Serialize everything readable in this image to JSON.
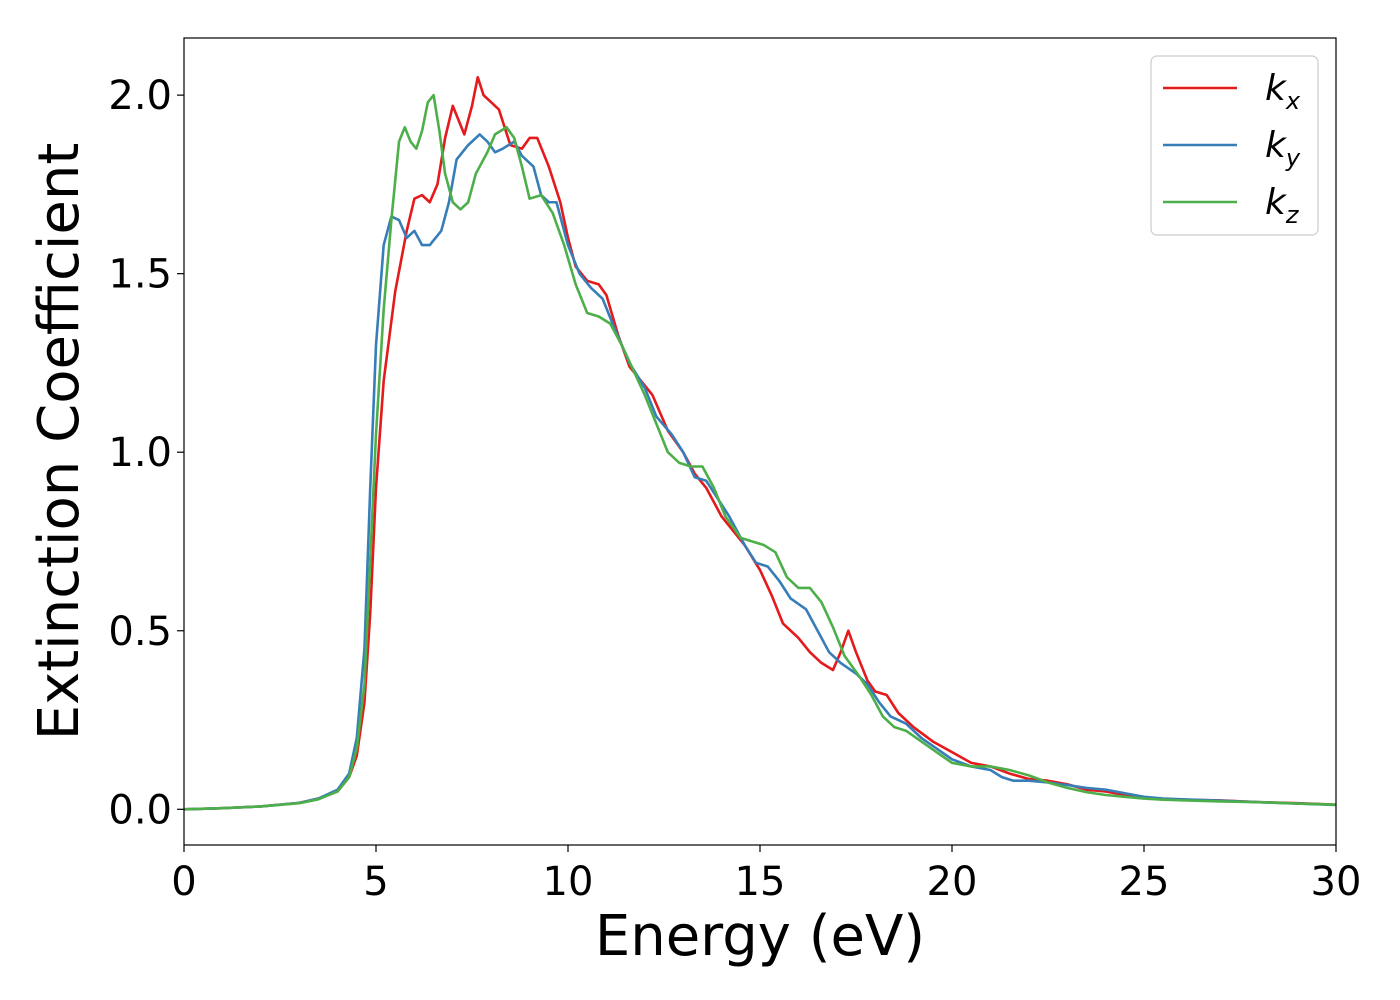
{
  "chart_data": {
    "type": "line",
    "title": "",
    "xlabel": "Energy (eV)",
    "ylabel": "Extinction Coefficient",
    "xlim": [
      0,
      30
    ],
    "ylim": [
      -0.1,
      2.16
    ],
    "xticks": [
      0,
      5,
      10,
      15,
      20,
      25,
      30
    ],
    "xtick_labels": [
      "0",
      "5",
      "10",
      "15",
      "20",
      "25",
      "30"
    ],
    "yticks": [
      0.0,
      0.5,
      1.0,
      1.5,
      2.0
    ],
    "ytick_labels": [
      "0.0",
      "0.5",
      "1.0",
      "1.5",
      "2.0"
    ],
    "grid": false,
    "legend_position": "top-right",
    "series": [
      {
        "name": "k_x",
        "label_main": "k",
        "label_sub": "x",
        "color": "#e41a1c",
        "points": [
          [
            0,
            0.0
          ],
          [
            1,
            0.003
          ],
          [
            2,
            0.008
          ],
          [
            3,
            0.018
          ],
          [
            3.5,
            0.03
          ],
          [
            4,
            0.05
          ],
          [
            4.3,
            0.09
          ],
          [
            4.5,
            0.15
          ],
          [
            4.7,
            0.3
          ],
          [
            4.85,
            0.55
          ],
          [
            5.0,
            0.9
          ],
          [
            5.2,
            1.2
          ],
          [
            5.5,
            1.45
          ],
          [
            5.8,
            1.62
          ],
          [
            6.0,
            1.71
          ],
          [
            6.2,
            1.72
          ],
          [
            6.4,
            1.7
          ],
          [
            6.6,
            1.75
          ],
          [
            6.8,
            1.88
          ],
          [
            7.0,
            1.97
          ],
          [
            7.15,
            1.93
          ],
          [
            7.3,
            1.89
          ],
          [
            7.5,
            1.97
          ],
          [
            7.65,
            2.05
          ],
          [
            7.8,
            2.0
          ],
          [
            8.0,
            1.98
          ],
          [
            8.2,
            1.96
          ],
          [
            8.5,
            1.86
          ],
          [
            8.8,
            1.85
          ],
          [
            9.0,
            1.88
          ],
          [
            9.2,
            1.88
          ],
          [
            9.5,
            1.8
          ],
          [
            9.8,
            1.7
          ],
          [
            10.0,
            1.6
          ],
          [
            10.2,
            1.52
          ],
          [
            10.5,
            1.48
          ],
          [
            10.8,
            1.47
          ],
          [
            11.0,
            1.44
          ],
          [
            11.3,
            1.33
          ],
          [
            11.6,
            1.24
          ],
          [
            11.9,
            1.2
          ],
          [
            12.2,
            1.16
          ],
          [
            12.6,
            1.06
          ],
          [
            13.0,
            1.0
          ],
          [
            13.3,
            0.94
          ],
          [
            13.6,
            0.9
          ],
          [
            14.0,
            0.82
          ],
          [
            14.3,
            0.78
          ],
          [
            14.6,
            0.74
          ],
          [
            15.0,
            0.67
          ],
          [
            15.3,
            0.6
          ],
          [
            15.6,
            0.52
          ],
          [
            16.0,
            0.48
          ],
          [
            16.3,
            0.44
          ],
          [
            16.6,
            0.41
          ],
          [
            16.9,
            0.39
          ],
          [
            17.1,
            0.44
          ],
          [
            17.3,
            0.5
          ],
          [
            17.5,
            0.44
          ],
          [
            17.8,
            0.36
          ],
          [
            18.0,
            0.33
          ],
          [
            18.3,
            0.32
          ],
          [
            18.6,
            0.27
          ],
          [
            19.0,
            0.23
          ],
          [
            19.5,
            0.19
          ],
          [
            20.0,
            0.16
          ],
          [
            20.5,
            0.13
          ],
          [
            21.0,
            0.12
          ],
          [
            21.5,
            0.1
          ],
          [
            22.0,
            0.085
          ],
          [
            22.5,
            0.08
          ],
          [
            23.0,
            0.07
          ],
          [
            23.5,
            0.055
          ],
          [
            24.0,
            0.05
          ],
          [
            24.5,
            0.04
          ],
          [
            25.0,
            0.032
          ],
          [
            25.5,
            0.028
          ],
          [
            26.0,
            0.027
          ],
          [
            27.0,
            0.025
          ],
          [
            28.0,
            0.02
          ],
          [
            29.0,
            0.017
          ],
          [
            30.0,
            0.013
          ]
        ]
      },
      {
        "name": "k_y",
        "label_main": "k",
        "label_sub": "y",
        "color": "#377eb8",
        "points": [
          [
            0,
            0.0
          ],
          [
            1,
            0.003
          ],
          [
            2,
            0.008
          ],
          [
            3,
            0.018
          ],
          [
            3.5,
            0.03
          ],
          [
            4,
            0.055
          ],
          [
            4.3,
            0.1
          ],
          [
            4.5,
            0.2
          ],
          [
            4.7,
            0.45
          ],
          [
            4.85,
            0.9
          ],
          [
            5.0,
            1.3
          ],
          [
            5.2,
            1.58
          ],
          [
            5.4,
            1.66
          ],
          [
            5.6,
            1.65
          ],
          [
            5.8,
            1.6
          ],
          [
            6.0,
            1.62
          ],
          [
            6.2,
            1.58
          ],
          [
            6.4,
            1.58
          ],
          [
            6.7,
            1.62
          ],
          [
            6.9,
            1.7
          ],
          [
            7.1,
            1.82
          ],
          [
            7.4,
            1.86
          ],
          [
            7.7,
            1.89
          ],
          [
            7.9,
            1.87
          ],
          [
            8.1,
            1.84
          ],
          [
            8.3,
            1.85
          ],
          [
            8.6,
            1.87
          ],
          [
            8.8,
            1.83
          ],
          [
            9.1,
            1.8
          ],
          [
            9.3,
            1.72
          ],
          [
            9.5,
            1.7
          ],
          [
            9.7,
            1.7
          ],
          [
            10.0,
            1.58
          ],
          [
            10.3,
            1.5
          ],
          [
            10.6,
            1.46
          ],
          [
            10.9,
            1.43
          ],
          [
            11.2,
            1.35
          ],
          [
            11.6,
            1.25
          ],
          [
            12.0,
            1.18
          ],
          [
            12.3,
            1.1
          ],
          [
            12.7,
            1.05
          ],
          [
            13.0,
            1.0
          ],
          [
            13.3,
            0.93
          ],
          [
            13.6,
            0.92
          ],
          [
            13.9,
            0.87
          ],
          [
            14.2,
            0.82
          ],
          [
            14.6,
            0.74
          ],
          [
            14.9,
            0.69
          ],
          [
            15.2,
            0.68
          ],
          [
            15.5,
            0.64
          ],
          [
            15.8,
            0.59
          ],
          [
            16.2,
            0.56
          ],
          [
            16.5,
            0.5
          ],
          [
            16.8,
            0.44
          ],
          [
            17.1,
            0.41
          ],
          [
            17.5,
            0.38
          ],
          [
            17.8,
            0.35
          ],
          [
            18.1,
            0.3
          ],
          [
            18.4,
            0.26
          ],
          [
            18.8,
            0.24
          ],
          [
            19.2,
            0.2
          ],
          [
            19.6,
            0.17
          ],
          [
            20.0,
            0.14
          ],
          [
            20.5,
            0.12
          ],
          [
            21.0,
            0.11
          ],
          [
            21.3,
            0.09
          ],
          [
            21.6,
            0.08
          ],
          [
            22.0,
            0.08
          ],
          [
            22.5,
            0.075
          ],
          [
            23.0,
            0.068
          ],
          [
            23.5,
            0.06
          ],
          [
            24.0,
            0.055
          ],
          [
            24.5,
            0.045
          ],
          [
            25.0,
            0.035
          ],
          [
            25.5,
            0.03
          ],
          [
            26.0,
            0.028
          ],
          [
            27.0,
            0.024
          ],
          [
            28.0,
            0.02
          ],
          [
            29.0,
            0.016
          ],
          [
            30.0,
            0.012
          ]
        ]
      },
      {
        "name": "k_z",
        "label_main": "k",
        "label_sub": "z",
        "color": "#4daf4a",
        "points": [
          [
            0,
            0.0
          ],
          [
            1,
            0.003
          ],
          [
            2,
            0.008
          ],
          [
            3,
            0.017
          ],
          [
            3.5,
            0.028
          ],
          [
            4,
            0.05
          ],
          [
            4.3,
            0.09
          ],
          [
            4.5,
            0.17
          ],
          [
            4.7,
            0.35
          ],
          [
            4.85,
            0.7
          ],
          [
            5.0,
            1.05
          ],
          [
            5.2,
            1.4
          ],
          [
            5.4,
            1.65
          ],
          [
            5.6,
            1.87
          ],
          [
            5.75,
            1.91
          ],
          [
            5.9,
            1.87
          ],
          [
            6.05,
            1.85
          ],
          [
            6.2,
            1.9
          ],
          [
            6.35,
            1.98
          ],
          [
            6.5,
            2.0
          ],
          [
            6.65,
            1.9
          ],
          [
            6.8,
            1.78
          ],
          [
            7.0,
            1.7
          ],
          [
            7.2,
            1.68
          ],
          [
            7.4,
            1.7
          ],
          [
            7.6,
            1.78
          ],
          [
            7.9,
            1.84
          ],
          [
            8.1,
            1.89
          ],
          [
            8.4,
            1.91
          ],
          [
            8.6,
            1.88
          ],
          [
            8.8,
            1.8
          ],
          [
            9.0,
            1.71
          ],
          [
            9.3,
            1.72
          ],
          [
            9.6,
            1.67
          ],
          [
            9.9,
            1.58
          ],
          [
            10.2,
            1.47
          ],
          [
            10.5,
            1.39
          ],
          [
            10.8,
            1.38
          ],
          [
            11.1,
            1.36
          ],
          [
            11.4,
            1.3
          ],
          [
            11.7,
            1.23
          ],
          [
            12.0,
            1.16
          ],
          [
            12.3,
            1.08
          ],
          [
            12.6,
            1.0
          ],
          [
            12.9,
            0.97
          ],
          [
            13.2,
            0.96
          ],
          [
            13.5,
            0.96
          ],
          [
            13.8,
            0.9
          ],
          [
            14.1,
            0.82
          ],
          [
            14.5,
            0.76
          ],
          [
            14.8,
            0.75
          ],
          [
            15.1,
            0.74
          ],
          [
            15.4,
            0.72
          ],
          [
            15.7,
            0.65
          ],
          [
            16.0,
            0.62
          ],
          [
            16.3,
            0.62
          ],
          [
            16.6,
            0.58
          ],
          [
            16.9,
            0.51
          ],
          [
            17.2,
            0.43
          ],
          [
            17.6,
            0.37
          ],
          [
            17.9,
            0.32
          ],
          [
            18.2,
            0.26
          ],
          [
            18.5,
            0.23
          ],
          [
            18.8,
            0.22
          ],
          [
            19.2,
            0.19
          ],
          [
            19.6,
            0.16
          ],
          [
            20.0,
            0.13
          ],
          [
            20.5,
            0.12
          ],
          [
            21.0,
            0.12
          ],
          [
            21.5,
            0.11
          ],
          [
            22.0,
            0.095
          ],
          [
            22.5,
            0.075
          ],
          [
            23.0,
            0.06
          ],
          [
            23.5,
            0.048
          ],
          [
            24.0,
            0.04
          ],
          [
            24.5,
            0.035
          ],
          [
            25.0,
            0.03
          ],
          [
            25.5,
            0.027
          ],
          [
            26.0,
            0.025
          ],
          [
            27.0,
            0.022
          ],
          [
            28.0,
            0.02
          ],
          [
            29.0,
            0.016
          ],
          [
            30.0,
            0.013
          ]
        ]
      }
    ]
  }
}
